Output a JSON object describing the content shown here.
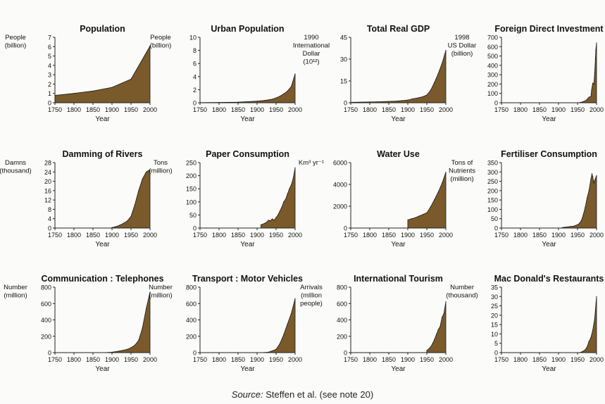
{
  "source": {
    "label": "Source:",
    "text": "Steffen et al. (see note 20)"
  },
  "colors": {
    "fill": "#7a5a2a",
    "stroke": "#1a1a1a",
    "axis": "#222222"
  },
  "chart_data": [
    {
      "type": "area",
      "title": "Population",
      "ylabel": [
        "People",
        "(billion)"
      ],
      "xlabel": "Year",
      "xlim": [
        1750,
        2000
      ],
      "ylim": [
        0,
        7
      ],
      "xticks": [
        1750,
        1800,
        1850,
        1900,
        1950,
        2000
      ],
      "yticks": [
        0,
        1,
        2,
        3,
        4,
        5,
        6,
        7
      ],
      "x": [
        1750,
        1800,
        1850,
        1900,
        1950,
        2000
      ],
      "y": [
        0.79,
        1.0,
        1.26,
        1.65,
        2.52,
        6.07
      ]
    },
    {
      "type": "area",
      "title": "Urban Population",
      "ylabel": [
        "People",
        "(billion)"
      ],
      "xlabel": "Year",
      "xlim": [
        1750,
        2000
      ],
      "ylim": [
        0,
        10
      ],
      "xticks": [
        1750,
        1800,
        1850,
        1900,
        1950,
        2000
      ],
      "yticks": [
        0,
        2,
        4,
        6,
        8,
        10
      ],
      "x": [
        1750,
        1800,
        1850,
        1900,
        1920,
        1940,
        1950,
        1960,
        1970,
        1980,
        1990,
        2000
      ],
      "y": [
        0.02,
        0.05,
        0.1,
        0.25,
        0.35,
        0.55,
        0.75,
        1.0,
        1.35,
        1.8,
        2.5,
        4.4
      ]
    },
    {
      "type": "area",
      "title": "Total Real GDP",
      "ylabel": [
        "1990",
        "International",
        "Dollar",
        "(10¹²)"
      ],
      "xlabel": "Year",
      "xlim": [
        1750,
        2000
      ],
      "ylim": [
        0,
        45
      ],
      "xticks": [
        1750,
        1800,
        1850,
        1900,
        1950,
        2000
      ],
      "yticks": [
        0,
        15,
        30,
        45
      ],
      "x": [
        1750,
        1820,
        1870,
        1900,
        1913,
        1930,
        1940,
        1950,
        1960,
        1970,
        1980,
        1990,
        2000
      ],
      "y": [
        0.3,
        0.7,
        1.1,
        1.9,
        2.7,
        3.6,
        4.2,
        5.3,
        8.5,
        14,
        20,
        27,
        36
      ]
    },
    {
      "type": "area",
      "title": "Foreign Direct Investment",
      "ylabel": [
        "1998",
        "US Dollar",
        "(billion)"
      ],
      "xlabel": "Year",
      "xlim": [
        1750,
        2000
      ],
      "ylim": [
        0,
        700
      ],
      "xticks": [
        1750,
        1800,
        1850,
        1900,
        1950,
        2000
      ],
      "yticks": [
        0,
        100,
        200,
        300,
        400,
        500,
        600,
        700
      ],
      "x": [
        1950,
        1960,
        1970,
        1975,
        1980,
        1985,
        1987,
        1990,
        1993,
        1995,
        1997,
        1998,
        2000
      ],
      "y": [
        0,
        5,
        20,
        35,
        60,
        65,
        140,
        210,
        200,
        320,
        470,
        560,
        640
      ]
    },
    {
      "type": "area",
      "title": "Damming of Rivers",
      "ylabel": [
        "Damns",
        "(thousand)"
      ],
      "xlabel": "Year",
      "xlim": [
        1750,
        2000
      ],
      "ylim": [
        0,
        28
      ],
      "xticks": [
        1750,
        1800,
        1850,
        1900,
        1950,
        2000
      ],
      "yticks": [
        0,
        4,
        8,
        12,
        16,
        20,
        24,
        28
      ],
      "x": [
        1900,
        1910,
        1920,
        1930,
        1940,
        1950,
        1960,
        1970,
        1980,
        1990,
        2000
      ],
      "y": [
        0.2,
        0.6,
        1.2,
        2.0,
        3.0,
        5.0,
        10,
        16,
        21,
        24,
        25
      ]
    },
    {
      "type": "area",
      "title": "Paper Consumption",
      "ylabel": [
        "Tons",
        "(million)"
      ],
      "xlabel": "Year",
      "xlim": [
        1750,
        2000
      ],
      "ylim": [
        0,
        250
      ],
      "xticks": [
        1750,
        1800,
        1850,
        1900,
        1950,
        2000
      ],
      "yticks": [
        0,
        50,
        100,
        150,
        200,
        250
      ],
      "x": [
        1910,
        1920,
        1925,
        1930,
        1935,
        1940,
        1945,
        1950,
        1955,
        1960,
        1965,
        1970,
        1975,
        1980,
        1985,
        1990,
        1995,
        2000
      ],
      "y": [
        12,
        18,
        22,
        30,
        28,
        35,
        30,
        40,
        50,
        65,
        80,
        100,
        110,
        130,
        150,
        165,
        190,
        230
      ]
    },
    {
      "type": "area",
      "title": "Water Use",
      "ylabel": [
        "Km³ yr⁻¹"
      ],
      "xlabel": "Year",
      "xlim": [
        1750,
        2000
      ],
      "ylim": [
        0,
        6000
      ],
      "xticks": [
        1750,
        1800,
        1850,
        1900,
        1950,
        2000
      ],
      "yticks": [
        0,
        2000,
        4000,
        6000
      ],
      "x": [
        1900,
        1910,
        1920,
        1930,
        1940,
        1950,
        1960,
        1970,
        1980,
        1990,
        2000
      ],
      "y": [
        750,
        850,
        950,
        1100,
        1250,
        1400,
        1950,
        2600,
        3300,
        4100,
        5100
      ]
    },
    {
      "type": "area",
      "title": "Fertiliser Consumption",
      "ylabel": [
        "Tons of",
        "Nutrients",
        "(million)"
      ],
      "xlabel": "Year",
      "xlim": [
        1750,
        2000
      ],
      "ylim": [
        0,
        350
      ],
      "xticks": [
        1750,
        1800,
        1850,
        1900,
        1950,
        2000
      ],
      "yticks": [
        0,
        50,
        100,
        150,
        200,
        250,
        300,
        350
      ],
      "x": [
        1910,
        1920,
        1930,
        1940,
        1945,
        1950,
        1955,
        1960,
        1965,
        1970,
        1975,
        1980,
        1985,
        1988,
        1990,
        1993,
        1995,
        2000
      ],
      "y": [
        3,
        5,
        8,
        10,
        14,
        18,
        25,
        40,
        70,
        110,
        160,
        200,
        260,
        290,
        275,
        240,
        255,
        280
      ]
    },
    {
      "type": "area",
      "title": "Communication : Telephones",
      "ylabel": [
        "Number",
        "(million)"
      ],
      "xlabel": "Year",
      "xlim": [
        1750,
        2000
      ],
      "ylim": [
        0,
        800
      ],
      "xticks": [
        1750,
        1800,
        1850,
        1900,
        1950,
        2000
      ],
      "yticks": [
        0,
        200,
        400,
        600,
        800
      ],
      "x": [
        1880,
        1900,
        1920,
        1940,
        1950,
        1960,
        1970,
        1980,
        1990,
        2000
      ],
      "y": [
        0,
        5,
        20,
        40,
        60,
        90,
        150,
        300,
        540,
        740
      ]
    },
    {
      "type": "area",
      "title": "Transport : Motor Vehicles",
      "ylabel": [
        "Number",
        "(million)"
      ],
      "xlabel": "Year",
      "xlim": [
        1750,
        2000
      ],
      "ylim": [
        0,
        800
      ],
      "xticks": [
        1750,
        1800,
        1850,
        1900,
        1950,
        2000
      ],
      "yticks": [
        0,
        200,
        400,
        600,
        800
      ],
      "x": [
        1910,
        1930,
        1950,
        1960,
        1970,
        1980,
        1990,
        2000
      ],
      "y": [
        0,
        5,
        40,
        110,
        220,
        350,
        480,
        660
      ]
    },
    {
      "type": "area",
      "title": "International Tourism",
      "ylabel": [
        "Arrivals",
        "(million",
        "people)"
      ],
      "xlabel": "Year",
      "xlim": [
        1750,
        2000
      ],
      "ylim": [
        0,
        800
      ],
      "xticks": [
        1750,
        1800,
        1850,
        1900,
        1950,
        2000
      ],
      "yticks": [
        0,
        200,
        400,
        600,
        800
      ],
      "x": [
        1950,
        1955,
        1960,
        1965,
        1970,
        1975,
        1980,
        1985,
        1990,
        1995,
        2000
      ],
      "y": [
        25,
        45,
        70,
        110,
        160,
        220,
        280,
        320,
        430,
        480,
        620
      ]
    },
    {
      "type": "area",
      "title": "Mac Donald's Restaurants",
      "ylabel": [
        "Number",
        "(thousand)"
      ],
      "xlabel": "Year",
      "xlim": [
        1750,
        2000
      ],
      "ylim": [
        0,
        35
      ],
      "xticks": [
        1750,
        1800,
        1850,
        1900,
        1950,
        2000
      ],
      "yticks": [
        0,
        5,
        10,
        15,
        20,
        25,
        30,
        35
      ],
      "x": [
        1955,
        1960,
        1965,
        1970,
        1975,
        1980,
        1985,
        1990,
        1995,
        2000
      ],
      "y": [
        0,
        0.3,
        0.8,
        1.5,
        3,
        6,
        8,
        12,
        18,
        30
      ]
    }
  ]
}
